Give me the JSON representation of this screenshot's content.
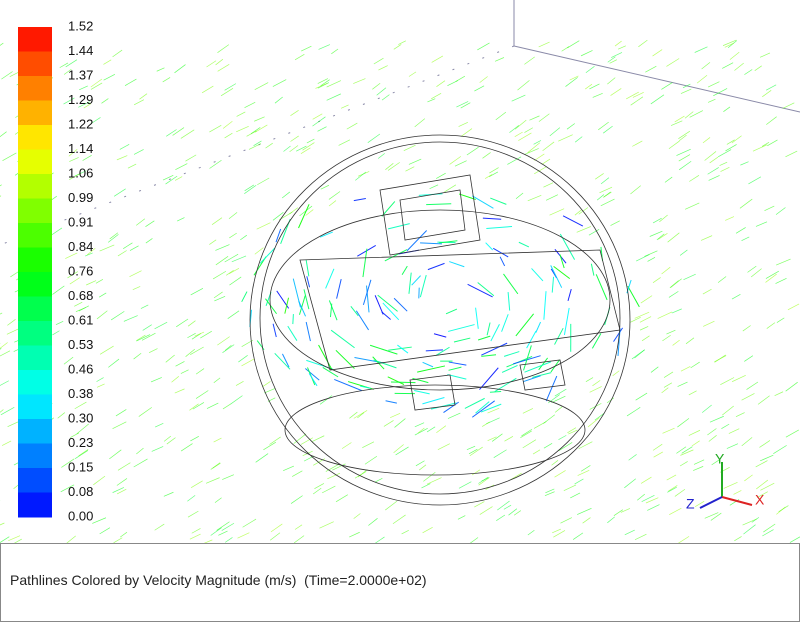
{
  "colorbar": {
    "labels": [
      "1.52",
      "1.44",
      "1.37",
      "1.29",
      "1.22",
      "1.14",
      "1.06",
      "0.99",
      "0.91",
      "0.84",
      "0.76",
      "0.68",
      "0.61",
      "0.53",
      "0.46",
      "0.38",
      "0.30",
      "0.23",
      "0.15",
      "0.08",
      "0.00"
    ]
  },
  "triad": {
    "x": "X",
    "y": "Y",
    "z": "Z"
  },
  "caption": "Pathlines Colored by Velocity Magnitude (m/s)  (Time=2.0000e+02)"
}
